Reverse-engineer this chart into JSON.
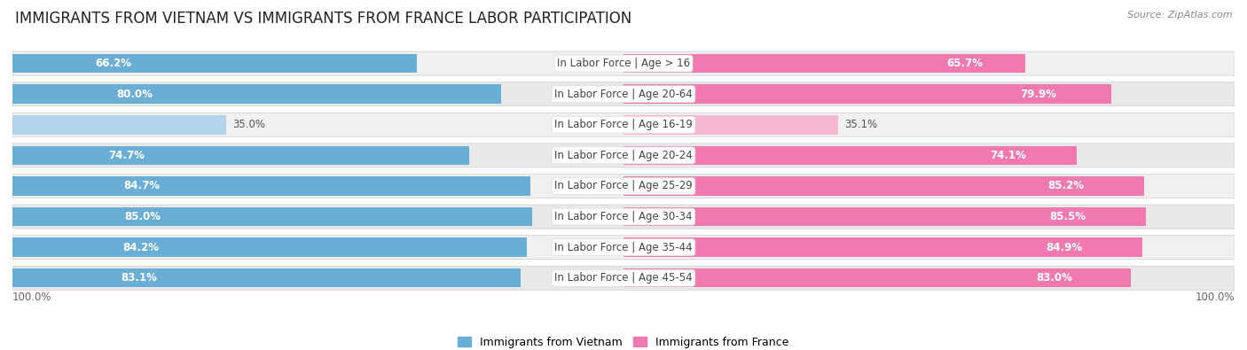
{
  "title": "IMMIGRANTS FROM VIETNAM VS IMMIGRANTS FROM FRANCE LABOR PARTICIPATION",
  "source": "Source: ZipAtlas.com",
  "categories": [
    "In Labor Force | Age > 16",
    "In Labor Force | Age 20-64",
    "In Labor Force | Age 16-19",
    "In Labor Force | Age 20-24",
    "In Labor Force | Age 25-29",
    "In Labor Force | Age 30-34",
    "In Labor Force | Age 35-44",
    "In Labor Force | Age 45-54"
  ],
  "vietnam_values": [
    66.2,
    80.0,
    35.0,
    74.7,
    84.7,
    85.0,
    84.2,
    83.1
  ],
  "france_values": [
    65.7,
    79.9,
    35.1,
    74.1,
    85.2,
    85.5,
    84.9,
    83.0
  ],
  "vietnam_color": "#6aaed6",
  "vietnam_color_light": "#b3d4e8",
  "france_color": "#f07ab0",
  "france_color_light": "#f5b8d2",
  "row_bg_even": "#efefef",
  "row_bg_odd": "#e5e5e5",
  "max_value": 100.0,
  "legend_vietnam": "Immigrants from Vietnam",
  "legend_france": "Immigrants from France",
  "title_fontsize": 12,
  "label_fontsize": 8.5,
  "value_fontsize": 8.5
}
